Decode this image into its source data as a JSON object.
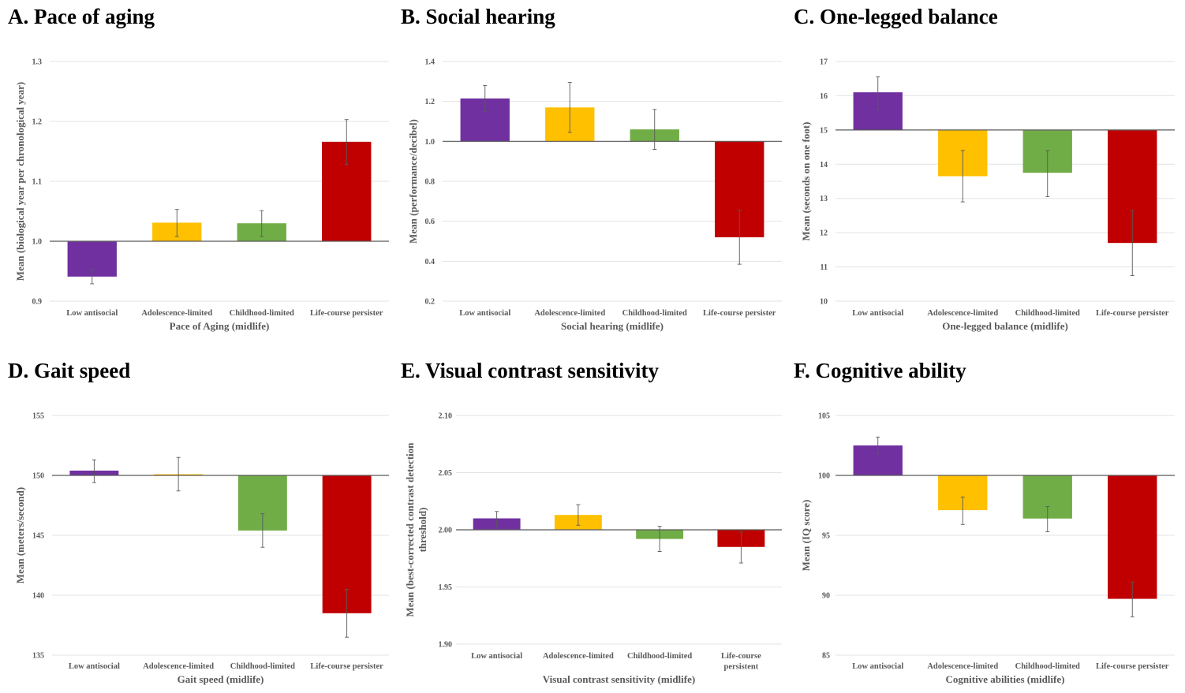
{
  "colors": {
    "low_antisocial": "#7030A0",
    "adolescence_limited": "#FFC000",
    "childhood_limited": "#70AD47",
    "life_course_persistent": "#C00000",
    "gridline": "#e3e3e3",
    "baseline": "#595959",
    "errorbar": "#595959"
  },
  "chart_data": [
    {
      "type": "bar",
      "title": "A. Pace of aging",
      "categories": [
        "Low antisocial",
        "Adolescence-limited",
        "Childhood-limited",
        "Life-course persistent"
      ],
      "values": [
        0.941,
        1.031,
        1.03,
        1.166
      ],
      "error_low": [
        0.929,
        1.008,
        1.008,
        1.128
      ],
      "error_high": [
        0.953,
        1.053,
        1.051,
        1.203
      ],
      "baseline": 1.0,
      "ylim": [
        0.9,
        1.3
      ],
      "yticks": [
        "0.9",
        "1.0",
        "1.1",
        "1.2",
        "1.3"
      ],
      "ytick_values": [
        0.9,
        1.0,
        1.1,
        1.2,
        1.3
      ],
      "xlabel": "Pace of Aging (midlife)",
      "ylabel": "Mean (biological year per chronological year)",
      "grid": true
    },
    {
      "type": "bar",
      "title": "B. Social hearing",
      "categories": [
        "Low antisocial",
        "Adolescence-limited",
        "Childhood-limited",
        "Life-course persistent"
      ],
      "values": [
        1.215,
        1.17,
        1.06,
        0.52
      ],
      "error_low": [
        1.15,
        1.045,
        0.96,
        0.385
      ],
      "error_high": [
        1.28,
        1.295,
        1.16,
        0.655
      ],
      "baseline": 1.0,
      "ylim": [
        0.2,
        1.4
      ],
      "yticks": [
        "0.2",
        "0.4",
        "0.6",
        "0.8",
        "1.0",
        "1.2",
        "1.4"
      ],
      "ytick_values": [
        0.2,
        0.4,
        0.6,
        0.8,
        1.0,
        1.2,
        1.4
      ],
      "xlabel": "Social hearing (midlife)",
      "ylabel": "Mean (performance/decibel)",
      "grid": true
    },
    {
      "type": "bar",
      "title": "C. One-legged balance",
      "categories": [
        "Low antisocial",
        "Adolescence-limited",
        "Childhood-limited",
        "Life-course persistent"
      ],
      "values": [
        16.1,
        13.65,
        13.75,
        11.7
      ],
      "error_low": [
        15.6,
        12.9,
        13.05,
        10.75
      ],
      "error_high": [
        16.55,
        14.4,
        14.4,
        12.65
      ],
      "baseline": 15,
      "ylim": [
        10,
        17
      ],
      "yticks": [
        "10",
        "11",
        "12",
        "13",
        "14",
        "15",
        "16",
        "17"
      ],
      "ytick_values": [
        10,
        11,
        12,
        13,
        14,
        15,
        16,
        17
      ],
      "xlabel": "One-legged balance (midlife)",
      "ylabel": "Mean (seconds on one foot)",
      "grid": true
    },
    {
      "type": "bar",
      "title": "D. Gait speed",
      "categories": [
        "Low antisocial",
        "Adolescence-limited",
        "Childhood-limited",
        "Life-course persistent"
      ],
      "values": [
        150.4,
        150.1,
        145.4,
        138.5
      ],
      "error_low": [
        149.4,
        148.7,
        144.0,
        136.5
      ],
      "error_high": [
        151.3,
        151.5,
        146.8,
        140.5
      ],
      "baseline": 150,
      "ylim": [
        135,
        155
      ],
      "yticks": [
        "135",
        "140",
        "145",
        "150",
        "155"
      ],
      "ytick_values": [
        135,
        140,
        145,
        150,
        155
      ],
      "xlabel": "Gait speed (midlife)",
      "ylabel": "Mean (meters/second)",
      "grid": true
    },
    {
      "type": "bar",
      "title": "E. Visual contrast sensitivity",
      "categories": [
        "Low antisocial",
        "Adolescence-limited",
        "Childhood-limited",
        "Life-course persistent"
      ],
      "values": [
        2.01,
        2.013,
        1.992,
        1.985
      ],
      "error_low": [
        2.003,
        2.004,
        1.981,
        1.971
      ],
      "error_high": [
        2.016,
        2.022,
        2.003,
        1.998
      ],
      "baseline": 2.0,
      "ylim": [
        1.9,
        2.1
      ],
      "yticks": [
        "1.90",
        "1.95",
        "2.00",
        "2.05",
        "2.10"
      ],
      "ytick_values": [
        1.9,
        1.95,
        2.0,
        2.05,
        2.1
      ],
      "xlabel": "Visual contrast sensitivity (midlife)",
      "ylabel": "Mean (best-corrected contrast detection threshold)",
      "grid": true
    },
    {
      "type": "bar",
      "title": "F. Cognitive ability",
      "categories": [
        "Low antisocial",
        "Adolescence-limited",
        "Childhood-limited",
        "Life-course persistent"
      ],
      "values": [
        102.5,
        97.1,
        96.4,
        89.7
      ],
      "error_low": [
        101.8,
        95.9,
        95.3,
        88.2
      ],
      "error_high": [
        103.2,
        98.2,
        97.4,
        91.1
      ],
      "baseline": 100,
      "ylim": [
        85,
        105
      ],
      "yticks": [
        "85",
        "90",
        "95",
        "100",
        "105"
      ],
      "ytick_values": [
        85,
        90,
        95,
        100,
        105
      ],
      "xlabel": "Cognitive abilities (midlife)",
      "ylabel": "Mean (IQ score)",
      "grid": true
    }
  ],
  "category_display": {
    "default": [
      "Low antisocial",
      "Adolescence-limited",
      "Childhood-limited",
      "Life-course persister"
    ],
    "wrapped": [
      [
        "Low antisocial"
      ],
      [
        "Adolescence-limited"
      ],
      [
        "Childhood-limited"
      ],
      [
        "Life-course",
        "persistent"
      ]
    ]
  },
  "ylabel_wrapped_E": [
    "Mean (best-corrected contrast detection",
    "threshold)"
  ]
}
